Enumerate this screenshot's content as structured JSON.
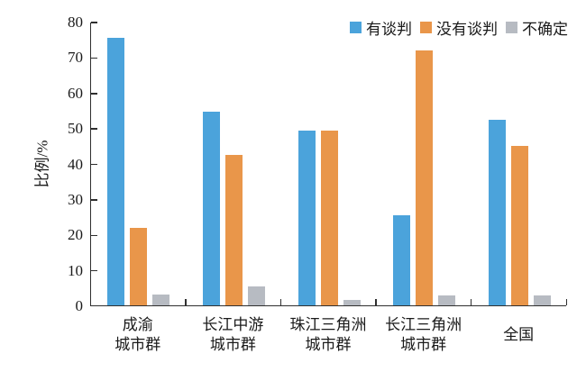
{
  "chart_data": {
    "type": "bar",
    "title": "",
    "xlabel": "",
    "ylabel": "比例/%",
    "ylim": [
      0,
      80
    ],
    "yticks": [
      0,
      10,
      20,
      30,
      40,
      50,
      60,
      70,
      80
    ],
    "grid": false,
    "legend_position": "top-right",
    "categories": [
      "成渝\n城市群",
      "长江中游\n城市群",
      "珠江三角洲\n城市群",
      "长江三角洲\n城市群",
      "全国"
    ],
    "series": [
      {
        "name": "有谈判",
        "color": "#4BA3DB",
        "values": [
          75.5,
          54.5,
          49.2,
          25.5,
          52.3
        ]
      },
      {
        "name": "没有谈判",
        "color": "#E9964A",
        "values": [
          21.8,
          42.5,
          49.4,
          71.9,
          45.0
        ]
      },
      {
        "name": "不确定",
        "color": "#B7BBC2",
        "values": [
          3.0,
          5.3,
          1.6,
          2.9,
          2.7
        ]
      }
    ],
    "axis_color": "#2f2f2f"
  }
}
